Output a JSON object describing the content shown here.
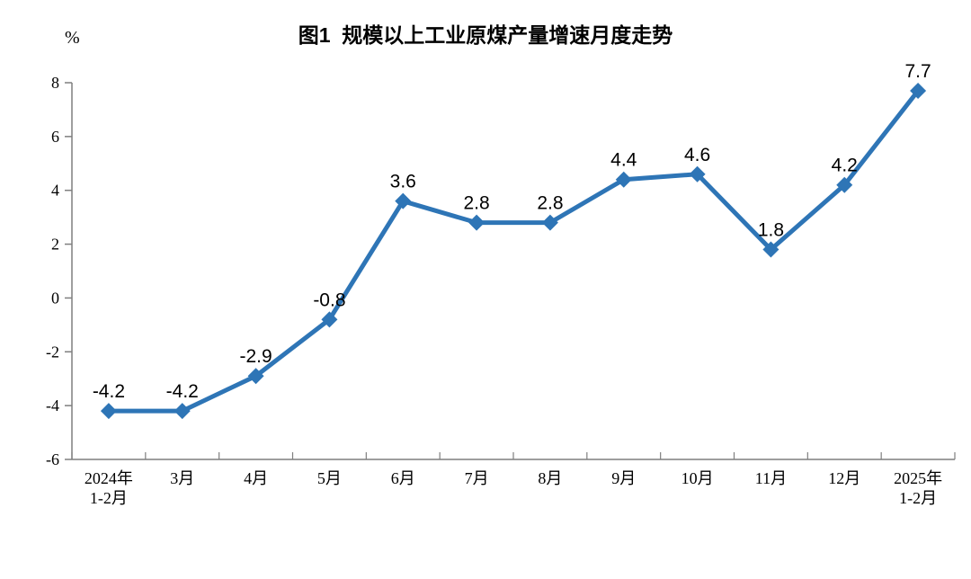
{
  "chart_data": {
    "type": "line",
    "title": "图1  规模以上工业原煤产量增速月度走势",
    "unit_label": "%",
    "categories": [
      "2024年\n1-2月",
      "3月",
      "4月",
      "5月",
      "6月",
      "7月",
      "8月",
      "9月",
      "10月",
      "11月",
      "12月",
      "2025年\n1-2月"
    ],
    "values": [
      -4.2,
      -4.2,
      -2.9,
      -0.8,
      3.6,
      2.8,
      2.8,
      4.4,
      4.6,
      1.8,
      4.2,
      7.7
    ],
    "data_labels": [
      "-4.2",
      "-4.2",
      "-2.9",
      "-0.8",
      "3.6",
      "2.8",
      "2.8",
      "4.4",
      "4.6",
      "1.8",
      "4.2",
      "7.7"
    ],
    "series_name": "规模以上工业原煤产量增速",
    "y_ticks": [
      8,
      6,
      4,
      2,
      0,
      -2,
      -4,
      -6
    ],
    "ylim": [
      -6,
      8
    ],
    "grid": false,
    "legend_position": "none",
    "line_color": "#2E75B6",
    "marker": "diamond",
    "axis_color": "#7f7f7f",
    "text_color": "#000000"
  }
}
